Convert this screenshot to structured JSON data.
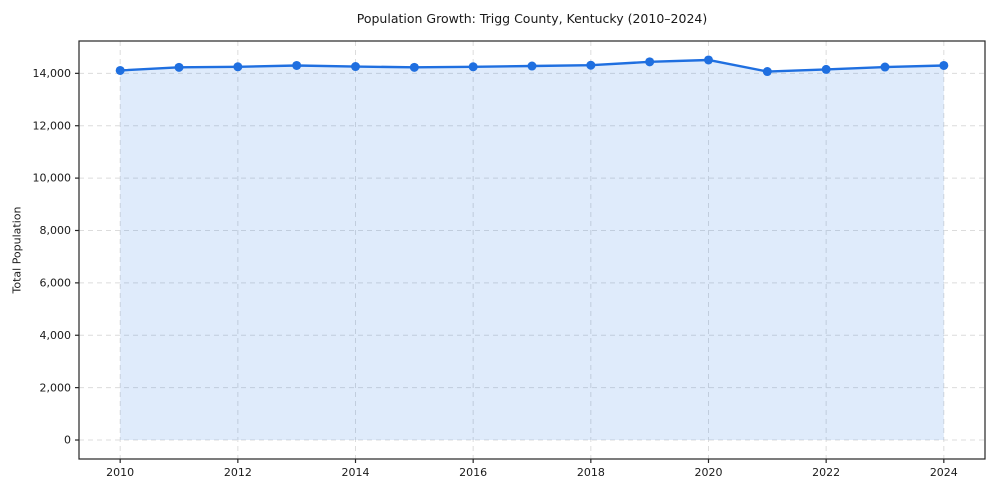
{
  "header": {
    "title": "Population Growth: Trigg County, Kentucky (2010–2024)"
  },
  "chart_data": {
    "type": "line",
    "title": "Population Growth: Trigg County, Kentucky (2010–2024)",
    "xlabel": "",
    "ylabel": "Total Population",
    "x": [
      2010,
      2011,
      2012,
      2013,
      2014,
      2015,
      2016,
      2017,
      2018,
      2019,
      2020,
      2021,
      2022,
      2023,
      2024
    ],
    "series": [
      {
        "name": "Total Population",
        "values": [
          14110,
          14230,
          14250,
          14300,
          14260,
          14230,
          14250,
          14280,
          14310,
          14440,
          14510,
          14070,
          14150,
          14240,
          14300
        ]
      }
    ],
    "x_ticks": [
      2010,
      2012,
      2014,
      2016,
      2018,
      2020,
      2022,
      2024
    ],
    "y_ticks": [
      0,
      2000,
      4000,
      6000,
      8000,
      10000,
      12000,
      14000
    ],
    "xlim": [
      2009.3,
      2024.7
    ],
    "ylim": [
      -725,
      15235
    ],
    "grid": true,
    "grid_style": "dashed",
    "legend": false,
    "marker": "circle",
    "marker_radius": 4.5,
    "line_width": 2.4,
    "area_fill": true,
    "area_baseline": 0,
    "colors": {
      "line": "#1f6fe0",
      "marker": "#1f6fe0",
      "area": "#1f6fe0",
      "area_opacity": 0.14,
      "grid": "#dcdcdc",
      "axis": "#262626",
      "text": "#1a1a1a",
      "background": "#ffffff"
    }
  }
}
